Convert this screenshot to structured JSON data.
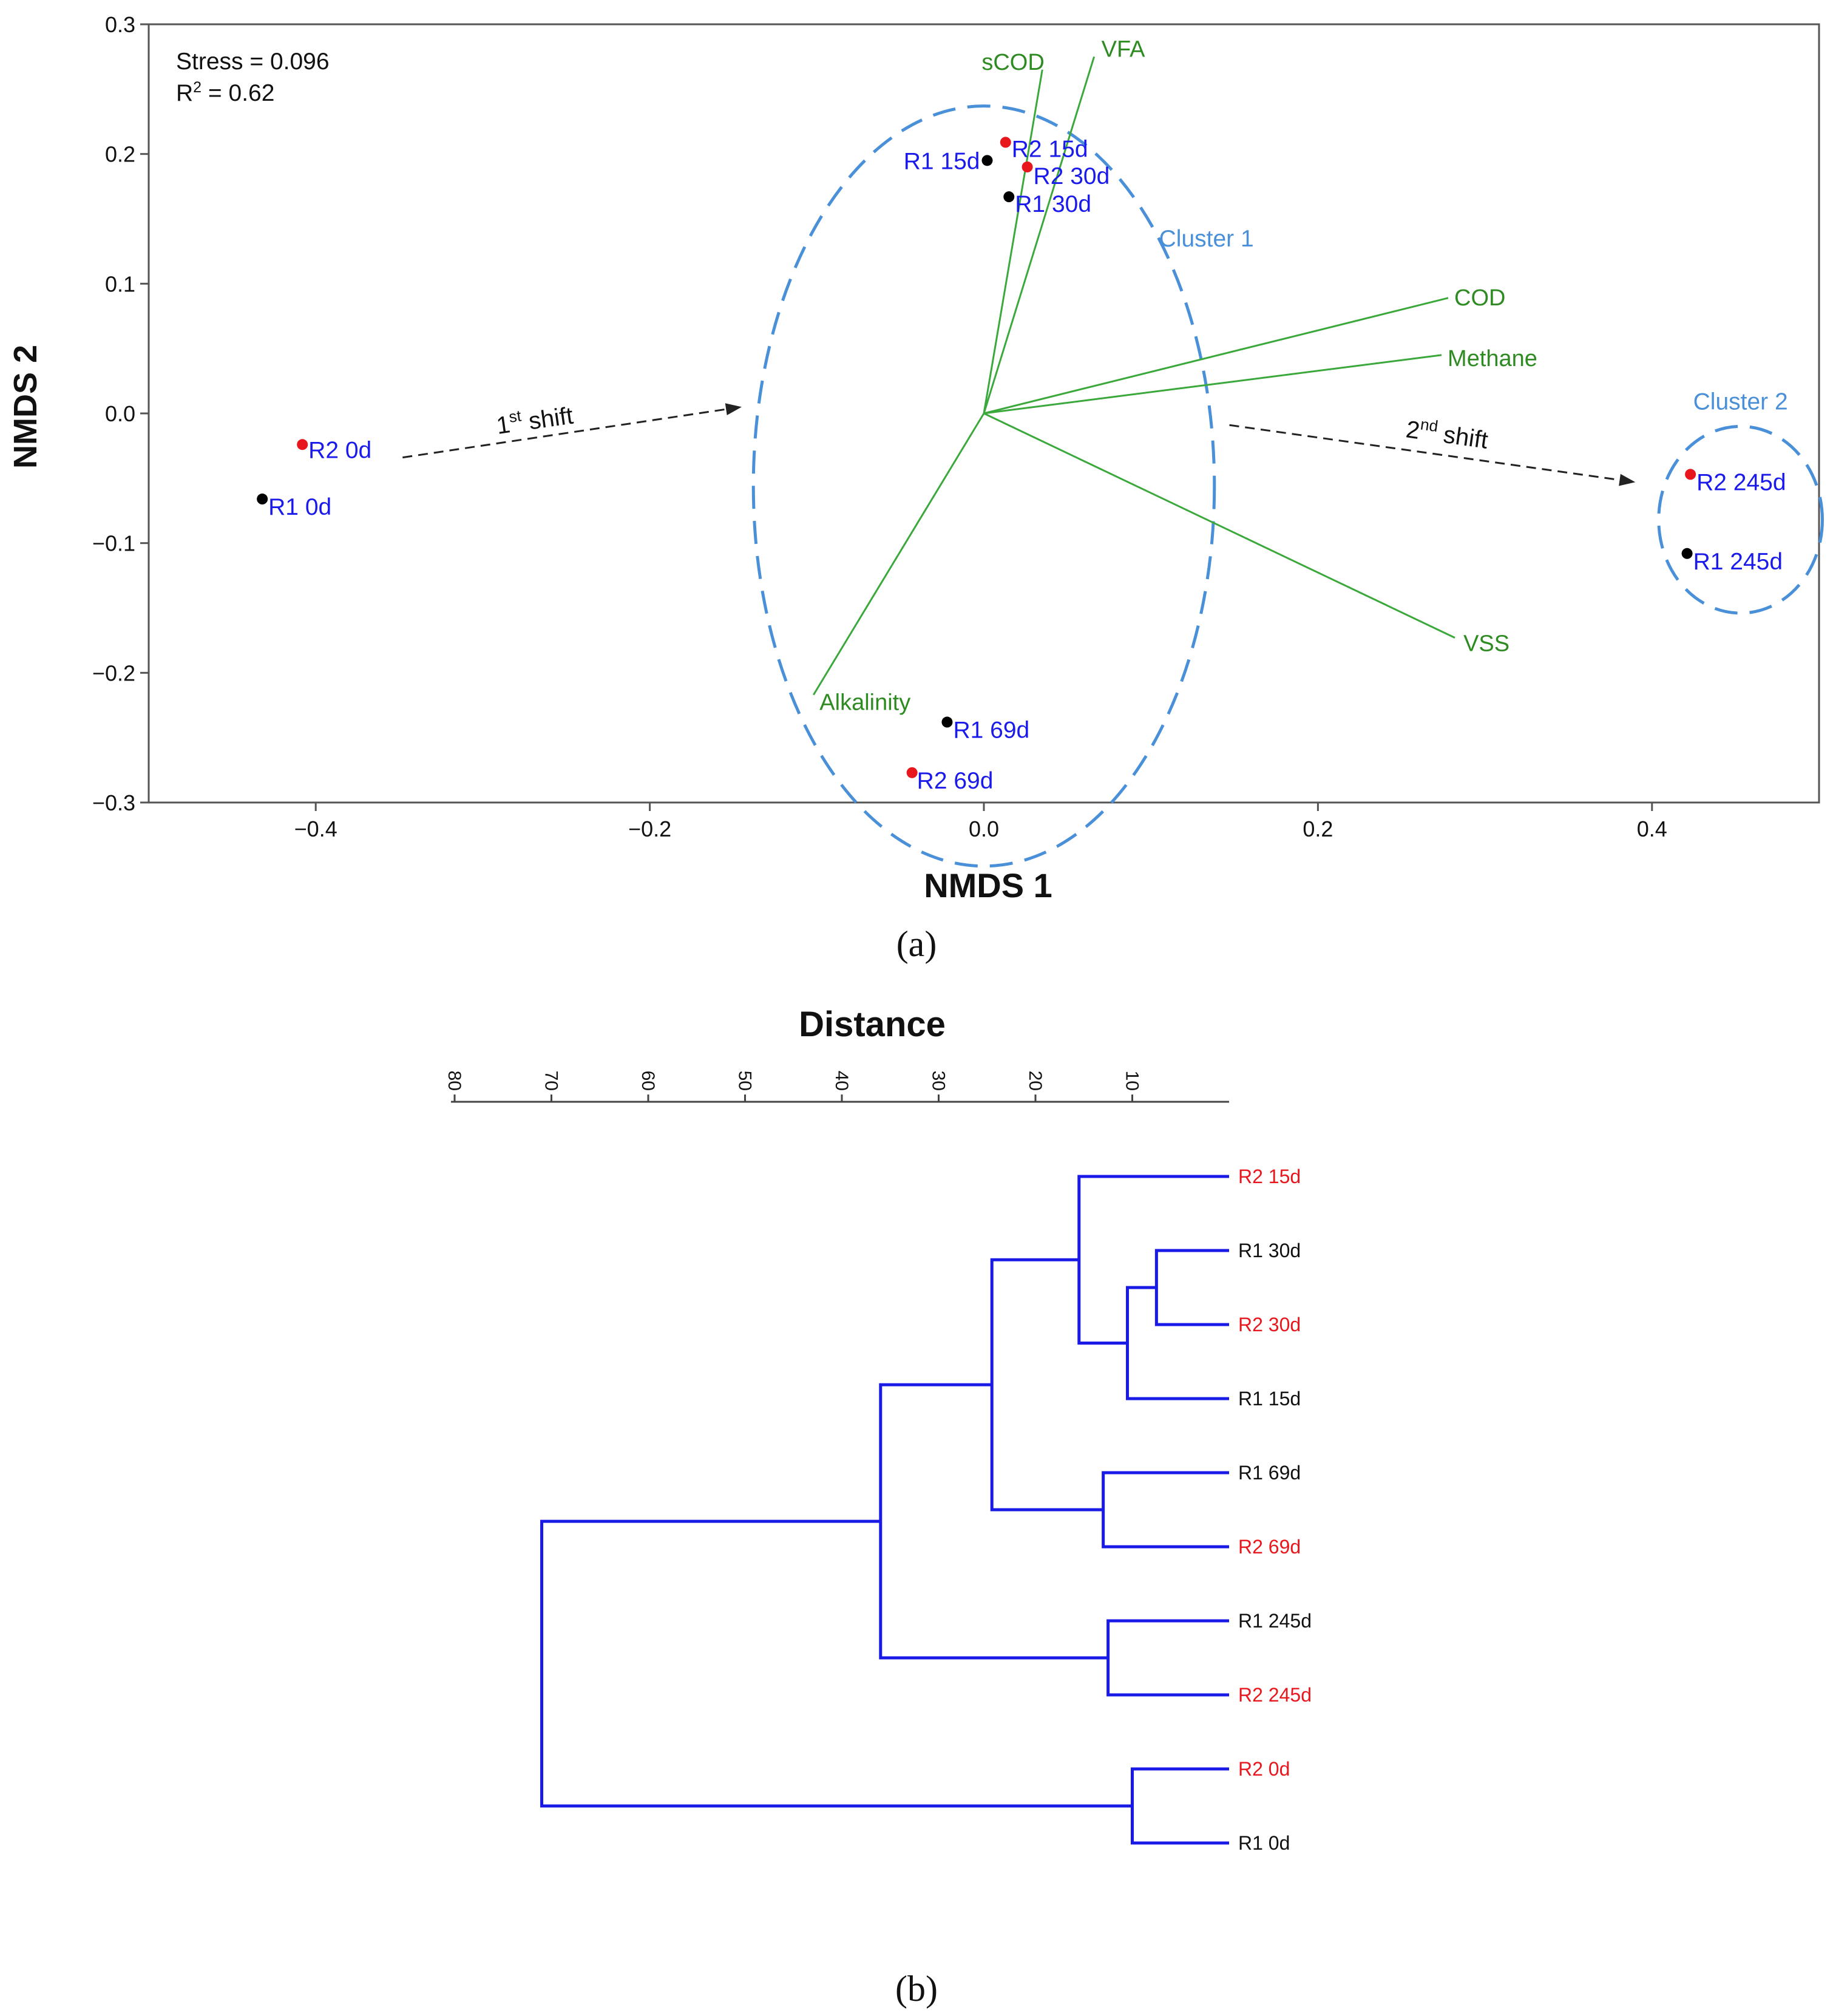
{
  "panel_a": {
    "caption": "(a)",
    "chart_data": {
      "type": "scatter",
      "xlabel": "NMDS 1",
      "ylabel": "NMDS 2",
      "xlim": [
        -0.5,
        0.5
      ],
      "ylim": [
        -0.3,
        0.3
      ],
      "xticks": [
        -0.4,
        -0.2,
        0.0,
        0.2,
        0.4
      ],
      "xtick_labels": [
        "−0.4",
        "−0.2",
        "0.0",
        "0.2",
        "0.4"
      ],
      "yticks": [
        -0.3,
        -0.2,
        -0.1,
        0.0,
        0.1,
        0.2,
        0.3
      ],
      "ytick_labels": [
        "−0.3",
        "−0.2",
        "−0.1",
        "0.0",
        "0.1",
        "0.2",
        "0.3"
      ],
      "stress_text": "Stress = 0.096",
      "r2_prefix": "R",
      "r2_sup": "2",
      "r2_rest": " = 0.62",
      "colors": {
        "R1": "#000000",
        "R2": "#e8171d",
        "point_label": "#1a1aea",
        "vector": "#3aa83a",
        "vector_label": "#2e8b22",
        "cluster": "#4a90d9",
        "arrow": "#222222"
      },
      "points": [
        {
          "label": "R2 0d",
          "reactor": "R2",
          "x": -0.408,
          "y": -0.024
        },
        {
          "label": "R1 0d",
          "reactor": "R1",
          "x": -0.432,
          "y": -0.066
        },
        {
          "label": "R2 15d",
          "reactor": "R2",
          "x": 0.013,
          "y": 0.209
        },
        {
          "label": "R1 15d",
          "reactor": "R1",
          "x": 0.002,
          "y": 0.195
        },
        {
          "label": "R2 30d",
          "reactor": "R2",
          "x": 0.026,
          "y": 0.19
        },
        {
          "label": "R1 30d",
          "reactor": "R1",
          "x": 0.015,
          "y": 0.167
        },
        {
          "label": "R1 69d",
          "reactor": "R1",
          "x": -0.022,
          "y": -0.238
        },
        {
          "label": "R2 69d",
          "reactor": "R2",
          "x": -0.043,
          "y": -0.277
        },
        {
          "label": "R2 245d",
          "reactor": "R2",
          "x": 0.423,
          "y": -0.047
        },
        {
          "label": "R1 245d",
          "reactor": "R1",
          "x": 0.421,
          "y": -0.108
        }
      ],
      "vectors": [
        {
          "name": "sCOD",
          "x": 0.035,
          "y": 0.265
        },
        {
          "name": "VFA",
          "x": 0.066,
          "y": 0.275
        },
        {
          "name": "COD",
          "x": 0.278,
          "y": 0.089
        },
        {
          "name": "Methane",
          "x": 0.274,
          "y": 0.045
        },
        {
          "name": "VSS",
          "x": 0.282,
          "y": -0.173
        },
        {
          "name": "Alkalinity",
          "x": -0.102,
          "y": -0.217
        }
      ],
      "clusters": [
        {
          "name": "Cluster 1",
          "cx": 0.0,
          "cy": -0.056,
          "rx": 0.138,
          "ry": 0.293
        },
        {
          "name": "Cluster 2",
          "cx": 0.453,
          "cy": -0.082,
          "rx": 0.049,
          "ry": 0.072
        }
      ],
      "shifts": [
        {
          "base": "1",
          "sup": "st",
          "rest": " shift",
          "from": [
            -0.348,
            -0.034
          ],
          "to": [
            -0.145,
            0.005
          ]
        },
        {
          "base": "2",
          "sup": "nd",
          "rest": " shift",
          "from": [
            0.147,
            -0.009
          ],
          "to": [
            0.39,
            -0.053
          ]
        }
      ]
    }
  },
  "panel_b": {
    "caption": "(b)",
    "chart_data": {
      "type": "dendrogram",
      "title": "Distance",
      "axis_range": [
        0,
        80
      ],
      "ticks": [
        10,
        20,
        30,
        40,
        50,
        60,
        70,
        80
      ],
      "leaves": [
        {
          "label": "R2 15d",
          "reactor": "R2"
        },
        {
          "label": "R1 30d",
          "reactor": "R1"
        },
        {
          "label": "R2 30d",
          "reactor": "R2"
        },
        {
          "label": "R1 15d",
          "reactor": "R1"
        },
        {
          "label": "R1 69d",
          "reactor": "R1"
        },
        {
          "label": "R2 69d",
          "reactor": "R2"
        },
        {
          "label": "R1 245d",
          "reactor": "R1"
        },
        {
          "label": "R2 245d",
          "reactor": "R2"
        },
        {
          "label": "R2 0d",
          "reactor": "R2"
        },
        {
          "label": "R1 0d",
          "reactor": "R1"
        }
      ],
      "merges": [
        {
          "id": "n1",
          "left": 1,
          "right": 2,
          "height": 7.5
        },
        {
          "id": "n2",
          "left": "n1",
          "right": 3,
          "height": 10.5
        },
        {
          "id": "n3",
          "left": 0,
          "right": "n2",
          "height": 15.5
        },
        {
          "id": "n4",
          "left": 4,
          "right": 5,
          "height": 13
        },
        {
          "id": "n5",
          "left": "n3",
          "right": "n4",
          "height": 24.5
        },
        {
          "id": "n6",
          "left": 6,
          "right": 7,
          "height": 12.5
        },
        {
          "id": "n7",
          "left": "n5",
          "right": "n6",
          "height": 36
        },
        {
          "id": "n8",
          "left": 8,
          "right": 9,
          "height": 10
        },
        {
          "id": "n9",
          "left": "n7",
          "right": "n8",
          "height": 71
        }
      ],
      "colors": {
        "branch": "#1a1ae6",
        "R1": "#111111",
        "R2": "#e8171d",
        "axis": "#444444"
      }
    }
  }
}
